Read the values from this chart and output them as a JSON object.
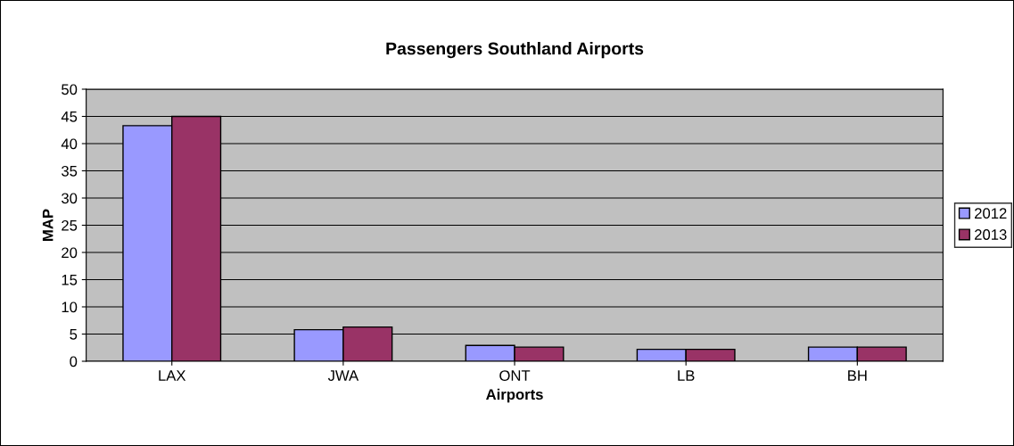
{
  "chart_data": {
    "type": "bar",
    "title": "Passengers Southland Airports",
    "xlabel": "Airports",
    "ylabel": "MAP",
    "categories": [
      "LAX",
      "JWA",
      "ONT",
      "LB",
      "BH"
    ],
    "series": [
      {
        "name": "2012",
        "color": "#9999ff",
        "values": [
          43.3,
          5.8,
          2.9,
          2.2,
          2.6
        ]
      },
      {
        "name": "2013",
        "color": "#993366",
        "values": [
          45,
          6.3,
          2.6,
          2.2,
          2.6
        ]
      }
    ],
    "ylim": [
      0,
      50
    ],
    "yticks": [
      0,
      5,
      10,
      15,
      20,
      25,
      30,
      35,
      40,
      45,
      50
    ],
    "grid": "y",
    "legend": "right"
  }
}
